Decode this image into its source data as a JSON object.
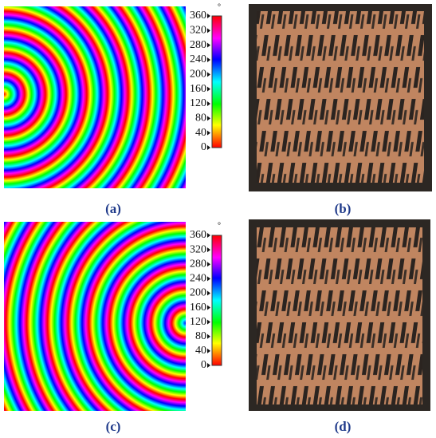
{
  "panels": [
    {
      "label": "(a)"
    },
    {
      "label": "(b)"
    },
    {
      "label": "(c)"
    },
    {
      "label": "(d)"
    }
  ],
  "colorbars": [
    {
      "unit": "°",
      "ticks": [
        360,
        320,
        280,
        240,
        200,
        160,
        120,
        80,
        40,
        0
      ]
    },
    {
      "unit": "°",
      "ticks": [
        360,
        320,
        280,
        240,
        200,
        160,
        120,
        80,
        40,
        0
      ]
    }
  ]
}
